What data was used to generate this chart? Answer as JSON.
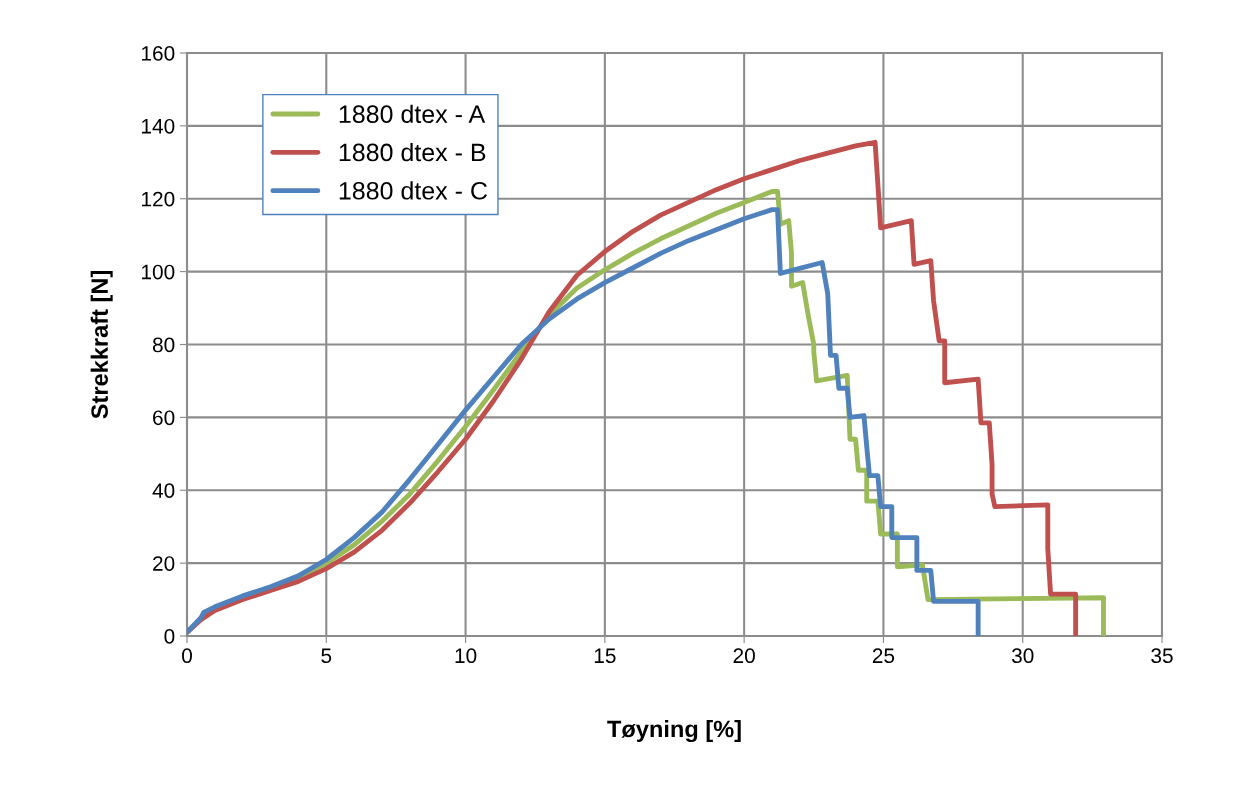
{
  "chart_data": {
    "type": "line",
    "xlabel": "Tøyning [%]",
    "ylabel": "Strekkraft [N]",
    "xlim": [
      0,
      35
    ],
    "xticks": [
      0,
      5,
      10,
      15,
      20,
      25,
      30,
      35
    ],
    "ylim": [
      0,
      160
    ],
    "yticks": [
      0,
      20,
      40,
      60,
      80,
      100,
      120,
      140,
      160
    ],
    "grid": true,
    "legend": "top left",
    "marker": "none",
    "line_style": "solid",
    "series": [
      {
        "name": "1880 dtex - A",
        "color": "#9bbb59",
        "x": [
          3,
          4,
          5,
          6,
          7,
          8,
          9,
          10,
          11,
          12,
          13,
          14,
          15,
          16,
          17,
          18,
          19,
          20,
          21,
          21.2,
          21.3,
          21.6,
          21.7,
          21.7,
          22.1,
          22.3,
          22.5,
          22.5,
          22.6,
          23.7,
          23.8,
          24.0,
          24.1,
          24.4,
          24.4,
          24.8,
          24.9,
          25.5,
          25.5,
          26.4,
          26.6,
          32.9,
          32.9
        ],
        "values": [
          13,
          16,
          20,
          25,
          31.5,
          39,
          48,
          57.5,
          67.5,
          78,
          88,
          95.5,
          100.5,
          105,
          109,
          112.5,
          116,
          119,
          122,
          122,
          113,
          114,
          105,
          96,
          97,
          88,
          80,
          78,
          70,
          71.5,
          54,
          54,
          45.5,
          45.5,
          37,
          37,
          28,
          28,
          19,
          19.5,
          10,
          10.5,
          0
        ]
      },
      {
        "name": "1880 dtex - B",
        "color": "#c0504d",
        "x": [
          0,
          0.5,
          1,
          2,
          3,
          4,
          5,
          6,
          7,
          8,
          9,
          10,
          11,
          12,
          13,
          14,
          15,
          16,
          17,
          18,
          19,
          20,
          21,
          22,
          23,
          24,
          24.7,
          24.8,
          24.9,
          26.0,
          26.1,
          26.7,
          26.8,
          27.0,
          27.2,
          27.2,
          28.4,
          28.5,
          28.8,
          28.9,
          28.9,
          29.0,
          30.9,
          30.9,
          31.0,
          31.9,
          31.9
        ],
        "values": [
          1,
          4.5,
          7,
          10,
          12.5,
          15,
          18.5,
          23,
          29,
          36.5,
          45,
          54,
          64.5,
          76,
          89,
          99,
          105.5,
          111,
          115.5,
          119,
          122.5,
          125.5,
          128,
          130.5,
          132.5,
          134.5,
          135.5,
          124,
          112,
          114,
          102,
          103,
          92,
          81,
          81,
          69.5,
          70.5,
          58.5,
          58.5,
          47,
          39,
          35.5,
          36,
          24,
          11.5,
          11.5,
          0
        ]
      },
      {
        "name": "1880 dtex - C",
        "color": "#4f81bd",
        "x": [
          0,
          0.5,
          0.6,
          1,
          2,
          3,
          4,
          5,
          6,
          7,
          8,
          9,
          10,
          11,
          12,
          13,
          14,
          15,
          16,
          17,
          18,
          19,
          20,
          21,
          21.2,
          21.3,
          22.8,
          23.0,
          23.1,
          23.3,
          23.4,
          23.7,
          23.8,
          24.3,
          24.4,
          24.5,
          24.8,
          24.9,
          25.3,
          25.3,
          26.2,
          26.2,
          26.7,
          26.8,
          28.4,
          28.4
        ],
        "values": [
          1,
          5,
          6.5,
          8,
          11,
          13.5,
          16.5,
          21,
          27,
          34,
          43,
          52.5,
          62,
          71,
          80,
          87,
          92.5,
          97,
          101,
          105,
          108.5,
          111.5,
          114.5,
          117,
          117,
          99.5,
          102.5,
          94,
          77,
          77,
          68,
          68,
          60,
          60.5,
          52,
          44,
          44,
          35.5,
          35.5,
          27,
          27,
          18,
          18,
          9.5,
          9.5,
          0
        ]
      }
    ]
  }
}
